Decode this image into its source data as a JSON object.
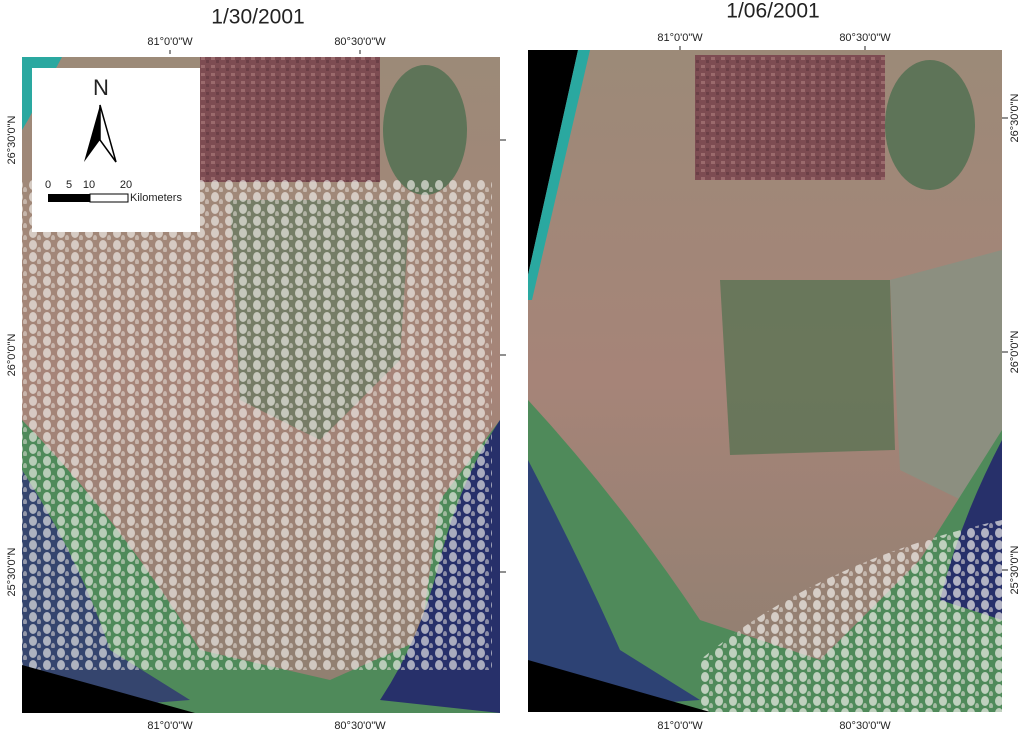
{
  "panels": [
    {
      "title": "1/30/2001",
      "top_labels": [
        "81°0'0\"W",
        "80°30'0\"W"
      ],
      "bottom_labels": [
        "81°0'0\"W",
        "80°30'0\"W"
      ],
      "side_labels": [
        "26°30'0\"N",
        "26°0'0\"N",
        "25°30'0\"N"
      ]
    },
    {
      "title": "1/06/2001",
      "top_labels": [
        "81°0'0\"W",
        "80°30'0\"W"
      ],
      "bottom_labels": [
        "81°0'0\"W",
        "80°30'0\"W"
      ],
      "side_labels": [
        "26°30'0\"N",
        "26°0'0\"N",
        "25°30'0\"N"
      ]
    }
  ],
  "legend": {
    "north": "N",
    "scale_labels": [
      "0",
      "5",
      "10",
      "20"
    ],
    "unit": "Kilometers"
  }
}
